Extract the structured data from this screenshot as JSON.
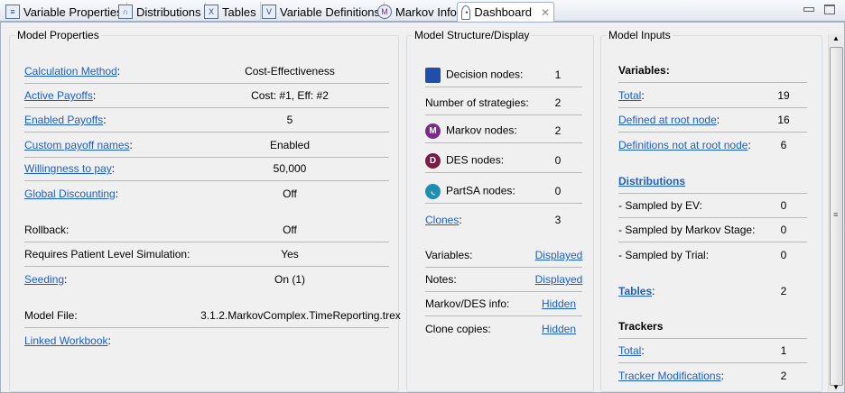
{
  "tabs": [
    {
      "label": "Variable Properties",
      "icon": "variable-properties-icon"
    },
    {
      "label": "Distributions",
      "icon": "distributions-icon"
    },
    {
      "label": "Tables",
      "icon": "tables-icon"
    },
    {
      "label": "Variable Definitions",
      "icon": "variable-definitions-icon"
    },
    {
      "label": "Markov Info",
      "icon": "markov-icon"
    },
    {
      "label": "Dashboard",
      "icon": "dashboard-icon",
      "active": true
    }
  ],
  "model_properties": {
    "title": "Model Properties",
    "rows": [
      {
        "label": "Calculation Method",
        "value": "Cost-Effectiveness",
        "link": true
      },
      {
        "label": "Active Payoffs",
        "value": "Cost: #1, Eff: #2",
        "link": true
      },
      {
        "label": "Enabled Payoffs",
        "value": "5",
        "link": true
      },
      {
        "label": "Custom payoff names",
        "value": "Enabled",
        "link": true
      },
      {
        "label": "Willingness to pay",
        "value": "50,000",
        "link": true
      },
      {
        "label": "Global Discounting",
        "value": "Off",
        "link": true
      },
      {
        "label": "Rollback:",
        "value": "Off"
      },
      {
        "label": "Requires Patient Level Simulation:",
        "value": "Yes"
      },
      {
        "label": "Seeding",
        "value": "On (1)",
        "link": true
      },
      {
        "label": "Model File:",
        "value": "3.1.2.MarkovComplex.TimeReporting.trex"
      },
      {
        "label": "Linked Workbook",
        "value": "",
        "link": true
      }
    ]
  },
  "model_structure": {
    "title": "Model Structure/Display",
    "rows": [
      {
        "label": "Decision nodes:",
        "value": "1",
        "icon": "decision-node-icon"
      },
      {
        "label": "Number of strategies:",
        "value": "2"
      },
      {
        "label": "Markov nodes:",
        "value": "2",
        "icon": "markov-node-icon"
      },
      {
        "label": "DES nodes:",
        "value": "0",
        "icon": "des-node-icon"
      },
      {
        "label": "PartSA nodes:",
        "value": "0",
        "icon": "partsa-node-icon"
      },
      {
        "label": "Clones",
        "value": "3",
        "link": true
      }
    ],
    "display": [
      {
        "label": "Variables:",
        "value": "Displayed"
      },
      {
        "label": "Notes:",
        "value": "Displayed"
      },
      {
        "label": "Markov/DES info:",
        "value": "Hidden"
      },
      {
        "label": "Clone copies:",
        "value": "Hidden"
      }
    ]
  },
  "model_inputs": {
    "title": "Model Inputs",
    "variables_heading": "Variables:",
    "variables": [
      {
        "label": "Total",
        "value": "19"
      },
      {
        "label": "Defined at root node",
        "value": "16"
      },
      {
        "label": "Definitions not at root node",
        "value": "6"
      }
    ],
    "distributions_heading": "Distributions",
    "distributions": [
      {
        "label": "- Sampled by EV:",
        "value": "0"
      },
      {
        "label": "- Sampled by Markov Stage:",
        "value": "0"
      },
      {
        "label": "- Sampled by Trial:",
        "value": "0"
      }
    ],
    "tables": {
      "label": "Tables",
      "value": "2"
    },
    "trackers_heading": "Trackers",
    "trackers": [
      {
        "label": "Total",
        "value": "1"
      },
      {
        "label": "Tracker Modifications",
        "value": "2"
      }
    ]
  },
  "colors": {
    "link": "#1a5fc9",
    "decision": "#1f4fa8",
    "markov": "#7b2a8c",
    "des": "#7a1a45",
    "partsa": "#1e8fb0"
  }
}
